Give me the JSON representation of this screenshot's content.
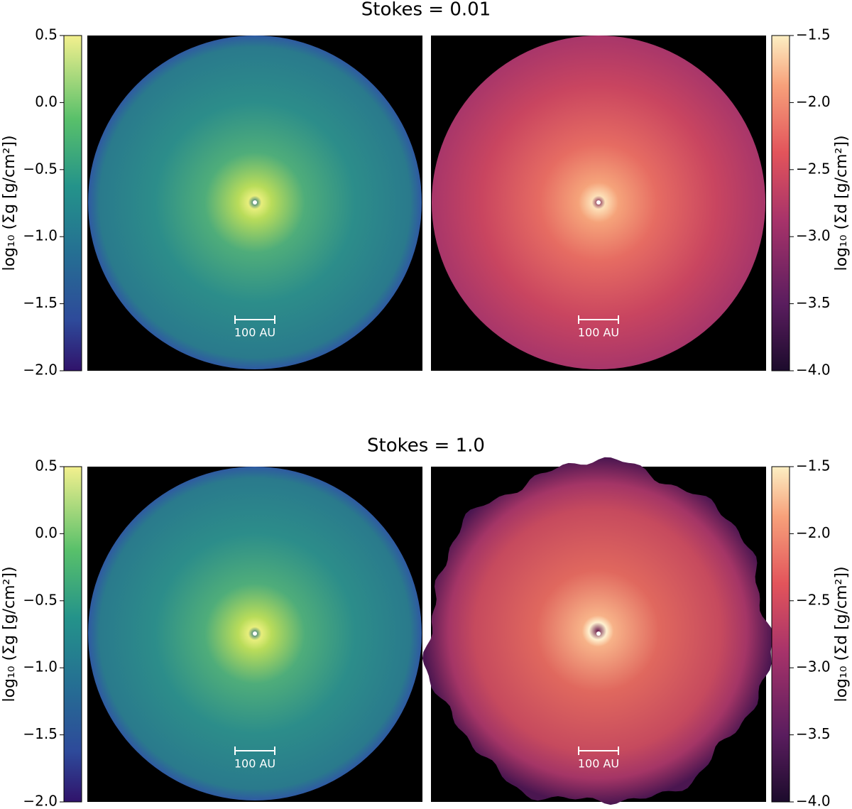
{
  "chart_data": [
    {
      "type": "disk-map",
      "title": "Stokes = 0.01",
      "gas": {
        "label": "log₁₀ (Σg [g/cm²])",
        "ylim": [
          -2,
          0.5
        ],
        "yticks": [
          0.5,
          {
            "value": 0,
            "label": "0.0"
          },
          {
            "value": -0.5,
            "label": "−0.5"
          },
          {
            "value": -1,
            "label": "−1.0"
          },
          {
            "value": -1.5,
            "label": "−1.5"
          },
          {
            "value": -2,
            "label": "−2.0"
          }
        ]
      },
      "dust": {
        "label": "log₁₀ (Σd [g/cm²])",
        "ylim": [
          -4,
          -1.5
        ],
        "yticks": [
          {
            "value": -1.5,
            "label": "−1.5"
          },
          {
            "value": -2,
            "label": "−2.0"
          },
          {
            "value": -2.5,
            "label": "−2.5"
          },
          {
            "value": -3,
            "label": "−3.0"
          },
          {
            "value": -3.5,
            "label": "−3.5"
          },
          {
            "value": -4,
            "label": "−4.0"
          }
        ]
      },
      "scale_bar": [
        "100 AU",
        "100 AU"
      ]
    },
    {
      "type": "disk-map",
      "title": "Stokes = 1.0",
      "gas": {
        "label": "log₁₀ (Σg [g/cm²])",
        "ylim": [
          -2,
          0.5
        ],
        "yticks": [
          0.5,
          {
            "value": 0,
            "label": "0.0"
          },
          {
            "value": -0.5,
            "label": "−0.5"
          },
          {
            "value": -1,
            "label": "−1.0"
          },
          {
            "value": -1.5,
            "label": "−1.5"
          },
          {
            "value": -2,
            "label": "−2.0"
          }
        ]
      },
      "dust": {
        "label": "log₁₀ (Σd [g/cm²])",
        "ylim": [
          -4,
          -1.5
        ],
        "yticks": [
          {
            "value": -1.5,
            "label": "−1.5"
          },
          {
            "value": -2,
            "label": "−2.0"
          },
          {
            "value": -2.5,
            "label": "−2.5"
          },
          {
            "value": -3,
            "label": "−3.0"
          },
          {
            "value": -3.5,
            "label": "−3.5"
          },
          {
            "value": -4,
            "label": "−4.0"
          }
        ]
      },
      "scale_bar": [
        "100 AU",
        "100 AU"
      ]
    }
  ]
}
